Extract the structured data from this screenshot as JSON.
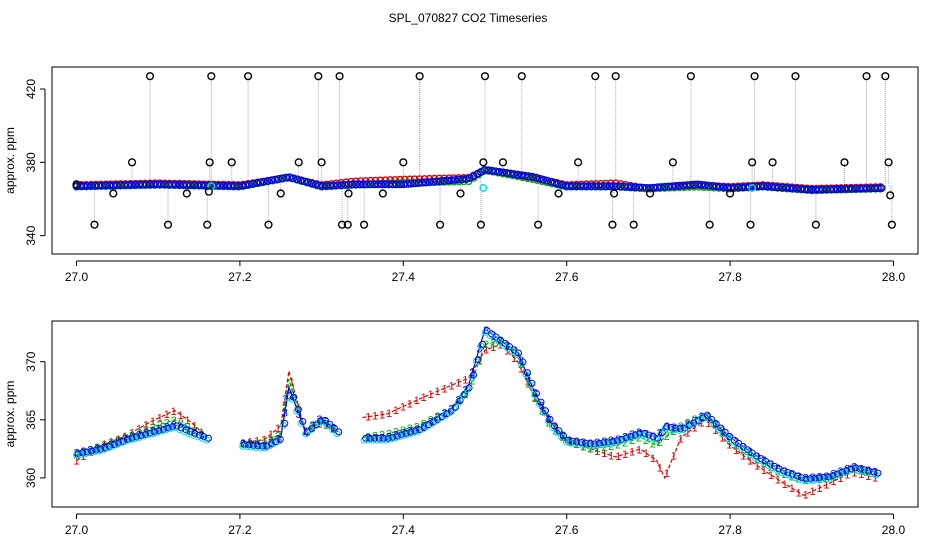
{
  "title": "SPL_070827  CO2 Timeseries",
  "colors": {
    "black": "#000000",
    "red": "#e00000",
    "green": "#00b000",
    "blue": "#0000e0",
    "cyan": "#00e0e0",
    "gray": "#999999"
  },
  "chart_data": [
    {
      "type": "scatter",
      "ylabel": "approx. ppm",
      "xlabel": "",
      "xlim": [
        26.97,
        28.03
      ],
      "ylim": [
        330,
        432
      ],
      "xticks": [
        27.0,
        27.2,
        27.4,
        27.6,
        27.8,
        28.0
      ],
      "xtick_labels": [
        "27.0",
        "27.2",
        "27.4",
        "27.6",
        "27.8",
        "28.0"
      ],
      "yticks": [
        340,
        380,
        420
      ],
      "ytick_labels": [
        "340",
        "380",
        "420"
      ],
      "series": [
        {
          "color": "black",
          "x": [
            27.0,
            27.022,
            27.045,
            27.068,
            27.09,
            27.112,
            27.135,
            27.16,
            27.162,
            27.163,
            27.165,
            27.19,
            27.21,
            27.235,
            27.25,
            27.272,
            27.296,
            27.3,
            27.322,
            27.325,
            27.332,
            27.333,
            27.352,
            27.375,
            27.4,
            27.42,
            27.445,
            27.47,
            27.495,
            27.498,
            27.5,
            27.522,
            27.545,
            27.565,
            27.59,
            27.614,
            27.635,
            27.656,
            27.658,
            27.66,
            27.682,
            27.702,
            27.73,
            27.752,
            27.775,
            27.8,
            27.825,
            27.827,
            27.83,
            27.852,
            27.88,
            27.905,
            27.94,
            27.967,
            27.99,
            27.994,
            27.996,
            27.998
          ],
          "y": [
            368,
            346,
            363,
            380,
            427,
            346,
            363,
            346,
            364,
            380,
            427,
            380,
            427,
            346,
            363,
            380,
            427,
            380,
            427,
            346,
            346,
            363,
            346,
            363,
            380,
            427,
            346,
            363,
            346,
            380,
            427,
            380,
            427,
            346,
            363,
            380,
            427,
            346,
            363,
            427,
            346,
            363,
            380,
            427,
            346,
            363,
            346,
            380,
            427,
            380,
            427,
            346,
            380,
            427,
            427,
            380,
            362,
            346
          ]
        },
        {
          "color": "red",
          "x": [
            27.0,
            27.1,
            27.2,
            27.26,
            27.3,
            27.34,
            27.4,
            27.48,
            27.5,
            27.56,
            27.6,
            27.66,
            27.7,
            27.76,
            27.8,
            27.84,
            27.9,
            27.99
          ],
          "y": [
            367,
            368,
            367,
            371,
            367,
            369,
            370,
            371,
            375,
            371,
            367,
            368,
            365,
            367,
            366,
            367,
            365,
            366
          ]
        },
        {
          "color": "green",
          "x": [
            27.0,
            27.1,
            27.2,
            27.26,
            27.3,
            27.34,
            27.4,
            27.48,
            27.5,
            27.56,
            27.6,
            27.66,
            27.7,
            27.76,
            27.8,
            27.84,
            27.9,
            27.99
          ],
          "y": [
            367,
            368,
            367,
            372,
            367,
            368,
            369,
            370,
            376,
            371,
            367,
            367,
            366,
            367,
            366,
            367,
            365,
            366
          ]
        },
        {
          "color": "blue",
          "x": [
            27.0,
            27.1,
            27.2,
            27.26,
            27.3,
            27.34,
            27.4,
            27.48,
            27.5,
            27.56,
            27.6,
            27.66,
            27.7,
            27.76,
            27.8,
            27.84,
            27.9,
            27.99
          ],
          "y": [
            367,
            368,
            367,
            372,
            367,
            368,
            368,
            371,
            376,
            372,
            367,
            367,
            366,
            368,
            366,
            367,
            365,
            366
          ]
        },
        {
          "color": "cyan",
          "x": [
            27.165,
            27.498,
            27.827
          ],
          "y": [
            367,
            366,
            366
          ]
        }
      ]
    },
    {
      "type": "line",
      "ylabel": "approx. ppm",
      "xlabel": "",
      "xlim": [
        26.97,
        28.03
      ],
      "ylim": [
        357.5,
        373.5
      ],
      "xticks": [
        27.0,
        27.2,
        27.4,
        27.6,
        27.8,
        28.0
      ],
      "xtick_labels": [
        "27.0",
        "27.2",
        "27.4",
        "27.6",
        "27.8",
        "28.0"
      ],
      "yticks": [
        360,
        365,
        370
      ],
      "ytick_labels": [
        "360",
        "365",
        "370"
      ],
      "series": [
        {
          "marker": "1",
          "color": "red",
          "x": [
            27.0,
            27.03,
            27.06,
            27.09,
            27.12,
            27.14,
            27.16,
            27.17,
            27.2,
            27.23,
            27.25,
            27.26,
            27.28,
            27.3,
            27.32,
            27.33,
            27.35,
            27.38,
            27.42,
            27.46,
            27.48,
            27.5,
            27.52,
            27.54,
            27.56,
            27.58,
            27.6,
            27.63,
            27.66,
            27.69,
            27.71,
            27.72,
            27.74,
            27.77,
            27.8,
            27.83,
            27.86,
            27.89,
            27.92,
            27.95,
            27.98
          ],
          "y": [
            361.5,
            362.8,
            363.6,
            364.8,
            365.8,
            364.8,
            363.5,
            null,
            363.0,
            363.3,
            364.5,
            369.2,
            364.0,
            364.8,
            364.0,
            null,
            365.2,
            365.5,
            366.8,
            368.0,
            368.6,
            371.0,
            371.5,
            370.0,
            367.0,
            365.0,
            363.2,
            362.5,
            361.8,
            362.5,
            361.5,
            360.0,
            363.5,
            365.0,
            362.8,
            361.2,
            359.8,
            358.5,
            359.5,
            360.5,
            360.0
          ]
        },
        {
          "marker": "2",
          "color": "green",
          "x": [
            27.0,
            27.03,
            27.06,
            27.09,
            27.12,
            27.14,
            27.16,
            27.17,
            27.2,
            27.23,
            27.25,
            27.26,
            27.28,
            27.3,
            27.32,
            27.33,
            27.35,
            27.38,
            27.42,
            27.46,
            27.48,
            27.5,
            27.52,
            27.54,
            27.56,
            27.58,
            27.6,
            27.63,
            27.66,
            27.69,
            27.71,
            27.72,
            27.74,
            27.77,
            27.8,
            27.83,
            27.86,
            27.89,
            27.92,
            27.95,
            27.98
          ],
          "y": [
            362.0,
            362.8,
            363.5,
            364.3,
            365.0,
            364.3,
            363.5,
            null,
            363.0,
            363.0,
            363.8,
            368.5,
            364.0,
            365.0,
            364.0,
            null,
            363.5,
            363.8,
            364.5,
            366.0,
            367.5,
            371.5,
            371.8,
            370.5,
            367.0,
            364.5,
            363.2,
            362.5,
            362.8,
            363.5,
            362.8,
            363.5,
            364.5,
            365.5,
            363.2,
            361.8,
            360.5,
            359.8,
            360.0,
            360.8,
            360.5
          ]
        },
        {
          "marker": "3",
          "color": "blue",
          "x": [
            27.0,
            27.03,
            27.06,
            27.09,
            27.12,
            27.14,
            27.16,
            27.17,
            27.2,
            27.23,
            27.25,
            27.26,
            27.28,
            27.3,
            27.32,
            27.33,
            27.35,
            27.38,
            27.42,
            27.46,
            27.48,
            27.5,
            27.52,
            27.54,
            27.56,
            27.58,
            27.6,
            27.63,
            27.66,
            27.69,
            27.71,
            27.72,
            27.74,
            27.77,
            27.8,
            27.83,
            27.86,
            27.89,
            27.92,
            27.95,
            27.98
          ],
          "y": [
            362.2,
            362.6,
            363.4,
            364.0,
            364.6,
            364.0,
            363.5,
            null,
            363.0,
            362.8,
            363.5,
            367.8,
            364.0,
            365.2,
            364.0,
            null,
            363.5,
            363.5,
            364.3,
            366.0,
            368.0,
            372.8,
            371.8,
            370.8,
            367.5,
            364.8,
            363.3,
            363.0,
            363.3,
            364.0,
            363.5,
            364.5,
            364.3,
            365.5,
            363.5,
            362.0,
            360.8,
            360.0,
            360.2,
            361.0,
            360.5
          ]
        }
      ]
    }
  ]
}
